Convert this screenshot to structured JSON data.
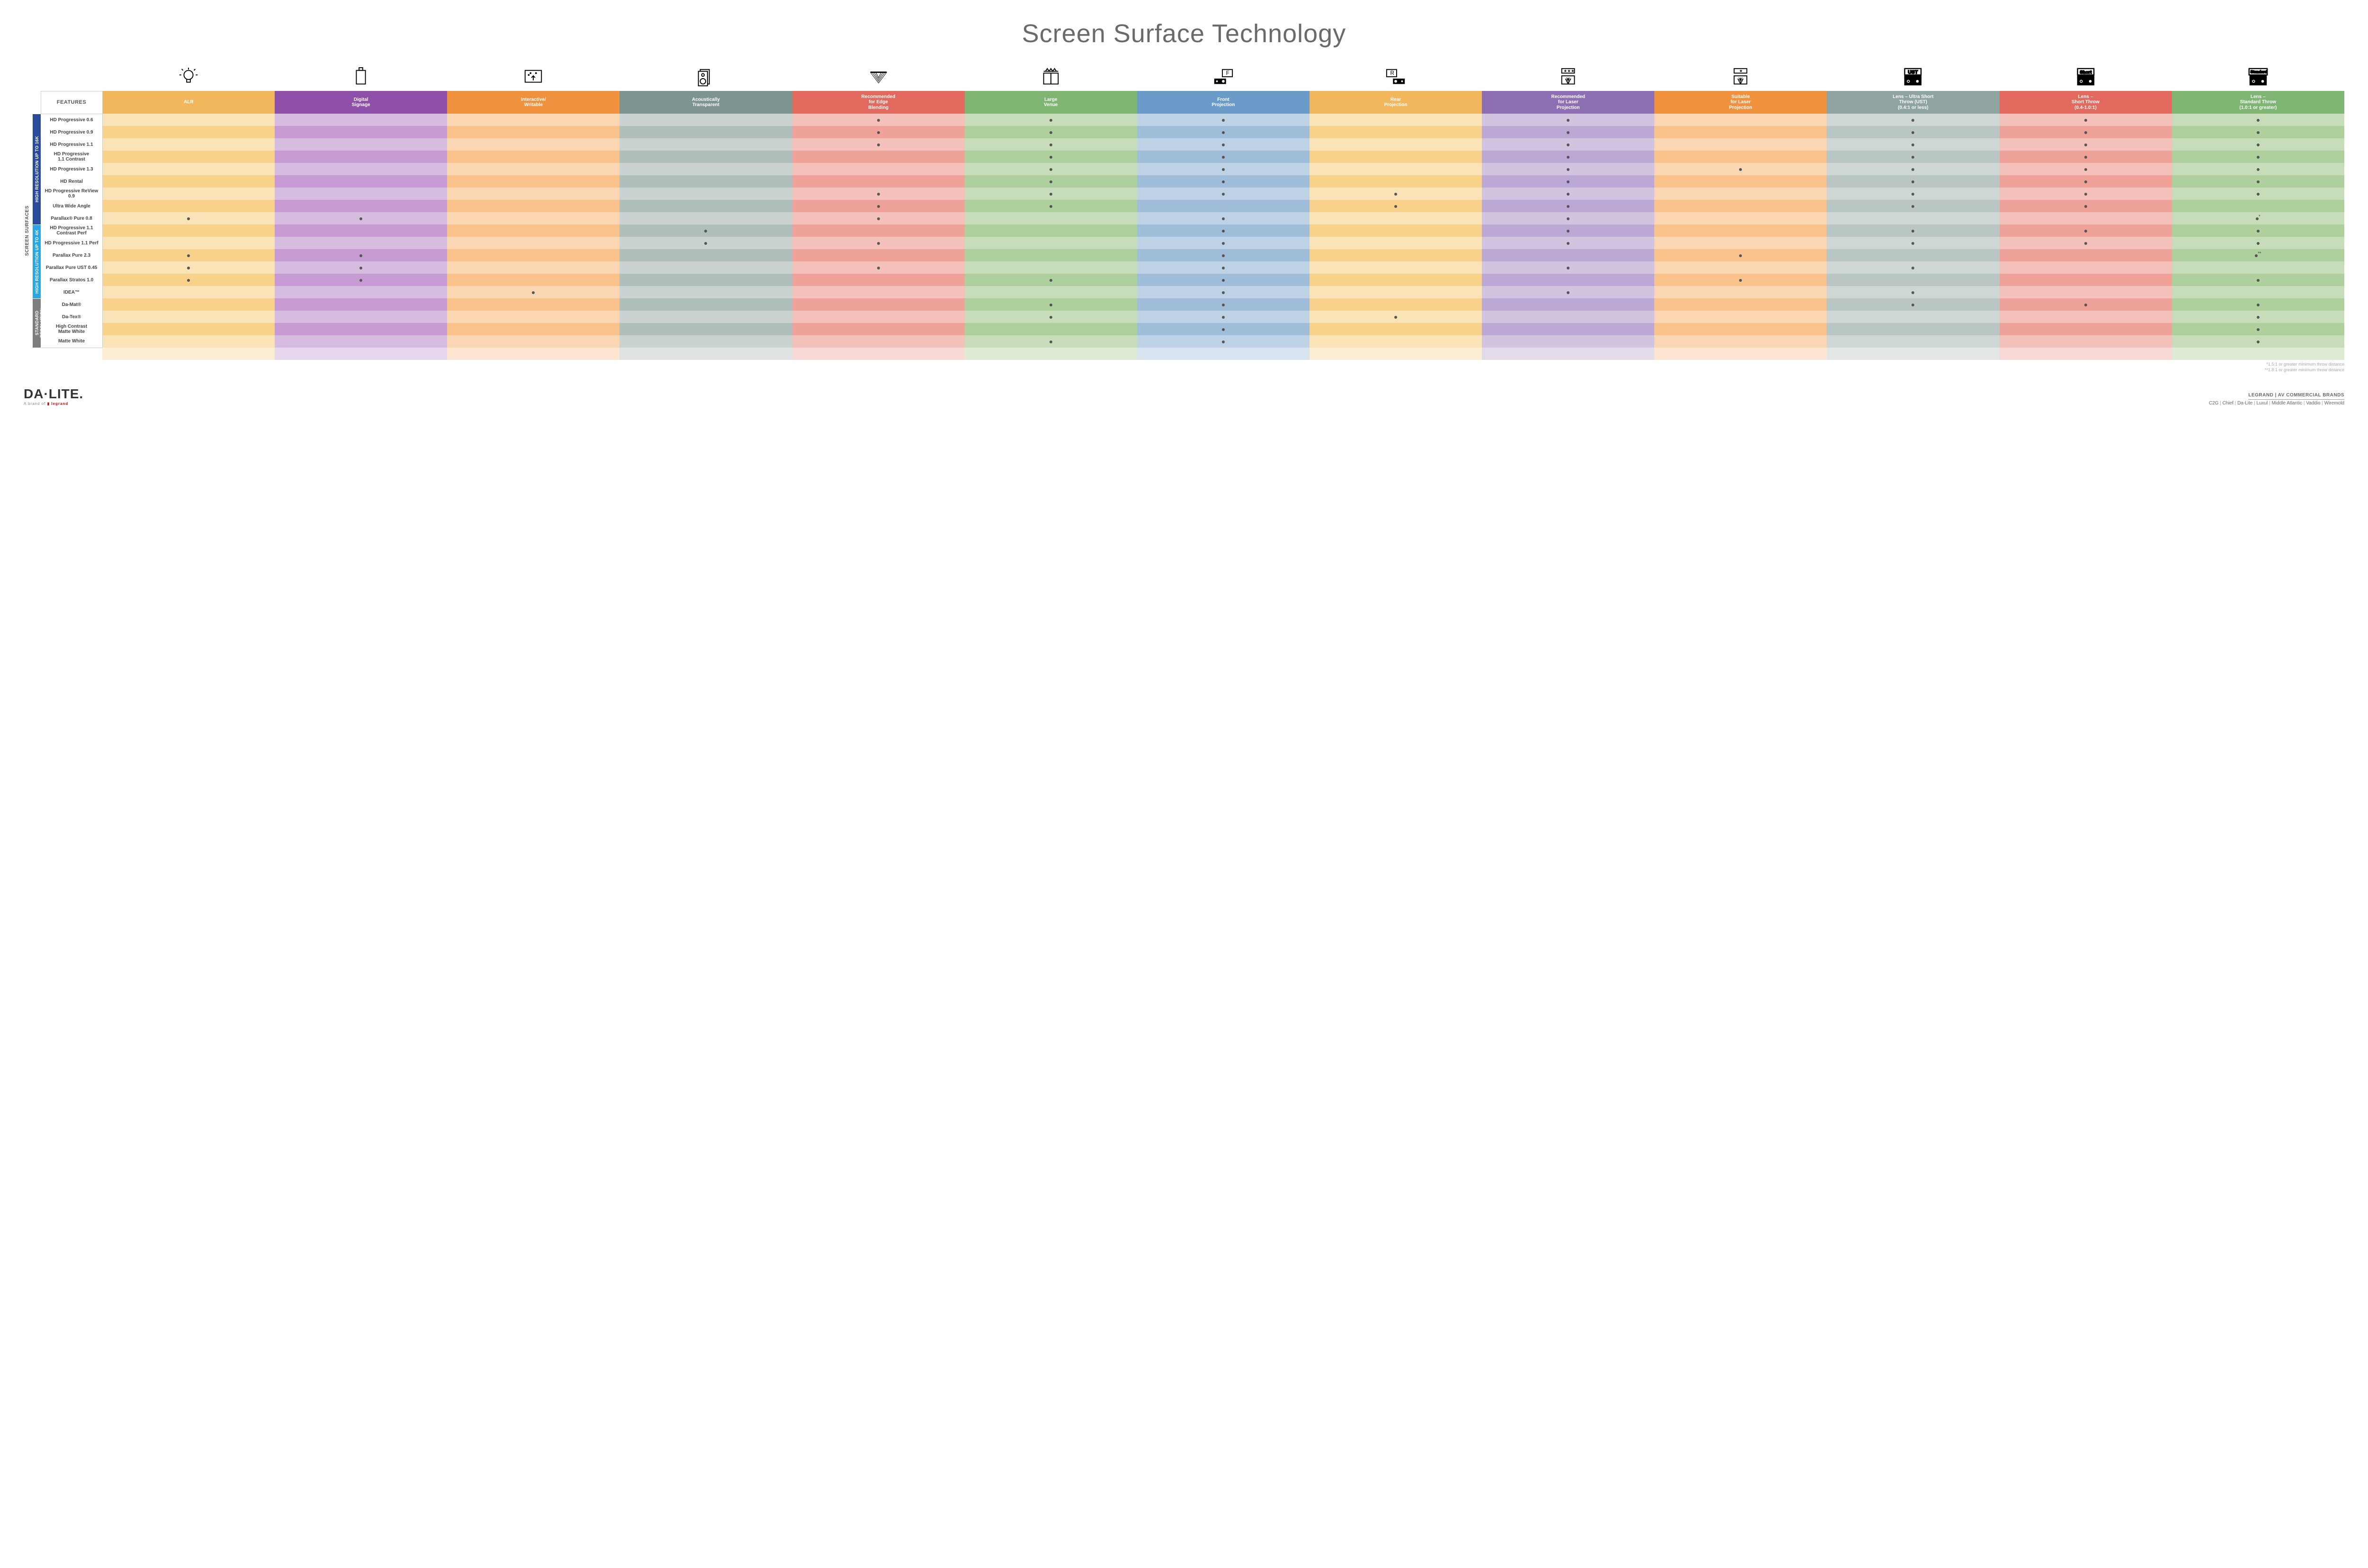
{
  "title": "Screen Surface Technology",
  "colors": {
    "columns": [
      "#f2b75c",
      "#8e4fa8",
      "#f0913e",
      "#7e9490",
      "#e2695e",
      "#7fb573",
      "#6b9bc9",
      "#f2b75c",
      "#8e6fb5",
      "#f0913e",
      "#8fa3a0",
      "#e2695e",
      "#7fb573"
    ],
    "columns_light": [
      "#fbe3b8",
      "#d6bde0",
      "#fbd6b3",
      "#c9d2d0",
      "#f4c0ba",
      "#c7ddb9",
      "#bdd2e4",
      "#fbe3b8",
      "#d0c4e0",
      "#fbd6b3",
      "#cfd7d5",
      "#f4c0ba",
      "#c7ddb9"
    ],
    "columns_mid": [
      "#f8d28b",
      "#c79ad4",
      "#f8c28a",
      "#b0bfbc",
      "#efa29a",
      "#aed09c",
      "#9fbcd9",
      "#f8d28b",
      "#bba8d4",
      "#f8c28a",
      "#bac6c3",
      "#efa29a",
      "#aed09c"
    ],
    "section_bars": [
      "#2b4a9b",
      "#2aa6e0",
      "#7d7d7d"
    ],
    "outer_label": "#555555",
    "dot": "#555555"
  },
  "columns": [
    {
      "label": "ALR"
    },
    {
      "label": "Digital\nSignage"
    },
    {
      "label": "Interactive/\nWritable"
    },
    {
      "label": "Acoustically\nTransparent"
    },
    {
      "label": "Recommended\nfor Edge\nBlending"
    },
    {
      "label": "Large\nVenue"
    },
    {
      "label": "Front\nProjection"
    },
    {
      "label": "Rear\nProjection"
    },
    {
      "label": "Recommended\nfor Laser\nProjection"
    },
    {
      "label": "Suitable\nfor Laser\nProjection"
    },
    {
      "label": "Lens – Ultra Short\nThrow (UST)\n(0.4:1 or less)"
    },
    {
      "label": "Lens –\nShort Throw\n(0.4-1.0:1)"
    },
    {
      "label": "Lens –\nStandard Throw\n(1.0:1 or greater)"
    }
  ],
  "icons": [
    "bulb",
    "signage",
    "touch",
    "speaker",
    "venue",
    "truss",
    "front-proj",
    "rear-proj",
    "laser-rec",
    "laser-suit",
    "ust",
    "short",
    "standard"
  ],
  "features_header": "FEATURES",
  "outer_label": "SCREEN SURFACES",
  "sections": [
    {
      "label": "HIGH RESOLUTION UP TO 16K",
      "rows": [
        {
          "name": "HD Progressive 0.6",
          "dots": [
            0,
            0,
            0,
            0,
            1,
            1,
            1,
            0,
            1,
            0,
            1,
            1,
            1
          ],
          "suffix": ""
        },
        {
          "name": "HD Progressive 0.9",
          "dots": [
            0,
            0,
            0,
            0,
            1,
            1,
            1,
            0,
            1,
            0,
            1,
            1,
            1
          ],
          "suffix": ""
        },
        {
          "name": "HD Progressive 1.1",
          "dots": [
            0,
            0,
            0,
            0,
            1,
            1,
            1,
            0,
            1,
            0,
            1,
            1,
            1
          ],
          "suffix": ""
        },
        {
          "name": "HD Progressive\n1.1 Contrast",
          "dots": [
            0,
            0,
            0,
            0,
            0,
            1,
            1,
            0,
            1,
            0,
            1,
            1,
            1
          ],
          "suffix": ""
        },
        {
          "name": "HD Progressive 1.3",
          "dots": [
            0,
            0,
            0,
            0,
            0,
            1,
            1,
            0,
            1,
            1,
            1,
            1,
            1
          ],
          "suffix": ""
        },
        {
          "name": "HD Rental",
          "dots": [
            0,
            0,
            0,
            0,
            0,
            1,
            1,
            0,
            1,
            0,
            1,
            1,
            1
          ],
          "suffix": ""
        },
        {
          "name": "HD Progressive ReView 0.9",
          "dots": [
            0,
            0,
            0,
            0,
            1,
            1,
            1,
            1,
            1,
            0,
            1,
            1,
            1
          ],
          "suffix": ""
        },
        {
          "name": "Ultra Wide Angle",
          "dots": [
            0,
            0,
            0,
            0,
            1,
            1,
            0,
            1,
            1,
            0,
            1,
            1,
            0
          ],
          "suffix": ""
        },
        {
          "name": "Parallax® Pure 0.8",
          "dots": [
            1,
            1,
            0,
            0,
            1,
            0,
            1,
            0,
            1,
            0,
            0,
            0,
            1
          ],
          "suffix": "*"
        }
      ]
    },
    {
      "label": "HIGH RESOLUTION UP TO 4K",
      "rows": [
        {
          "name": "HD Progressive 1.1\nContrast Perf",
          "dots": [
            0,
            0,
            0,
            1,
            0,
            0,
            1,
            0,
            1,
            0,
            1,
            1,
            1
          ],
          "suffix": ""
        },
        {
          "name": "HD Progressive 1.1 Perf",
          "dots": [
            0,
            0,
            0,
            1,
            1,
            0,
            1,
            0,
            1,
            0,
            1,
            1,
            1
          ],
          "suffix": ""
        },
        {
          "name": "Parallax Pure 2.3",
          "dots": [
            1,
            1,
            0,
            0,
            0,
            0,
            1,
            0,
            0,
            1,
            0,
            0,
            1
          ],
          "suffix": "**"
        },
        {
          "name": "Parallax Pure UST 0.45",
          "dots": [
            1,
            1,
            0,
            0,
            1,
            0,
            1,
            0,
            1,
            0,
            1,
            0,
            0
          ],
          "suffix": ""
        },
        {
          "name": "Parallax Stratos 1.0",
          "dots": [
            1,
            1,
            0,
            0,
            0,
            1,
            1,
            0,
            0,
            1,
            0,
            0,
            1
          ],
          "suffix": ""
        },
        {
          "name": "IDEA™",
          "dots": [
            0,
            0,
            1,
            0,
            0,
            0,
            1,
            0,
            1,
            0,
            1,
            0,
            0
          ],
          "suffix": ""
        }
      ]
    },
    {
      "label": "STANDARD\nRESOLUTION",
      "rows": [
        {
          "name": "Da-Mat®",
          "dots": [
            0,
            0,
            0,
            0,
            0,
            1,
            1,
            0,
            0,
            0,
            1,
            1,
            1
          ],
          "suffix": ""
        },
        {
          "name": "Da-Tex®",
          "dots": [
            0,
            0,
            0,
            0,
            0,
            1,
            1,
            1,
            0,
            0,
            0,
            0,
            1
          ],
          "suffix": ""
        },
        {
          "name": "High Contrast\nMatte White",
          "dots": [
            0,
            0,
            0,
            0,
            0,
            0,
            1,
            0,
            0,
            0,
            0,
            0,
            1
          ],
          "suffix": ""
        },
        {
          "name": "Matte White",
          "dots": [
            0,
            0,
            0,
            0,
            0,
            1,
            1,
            0,
            0,
            0,
            0,
            0,
            1
          ],
          "suffix": ""
        }
      ]
    }
  ],
  "footnotes": [
    "*1.5:1 or greater minimum throw distance",
    "**1.8:1 or greater minimum throw distance"
  ],
  "footer": {
    "logo_main": "DA·LITE.",
    "logo_sub_prefix": "A brand of ",
    "logo_sub_brand": "legrand",
    "right_top": "LEGRAND | AV COMMERCIAL BRANDS",
    "brands": [
      "C2G",
      "Chief",
      "Da-Lite",
      "Luxul",
      "Middle Atlantic",
      "Vaddio",
      "Wiremold"
    ]
  }
}
